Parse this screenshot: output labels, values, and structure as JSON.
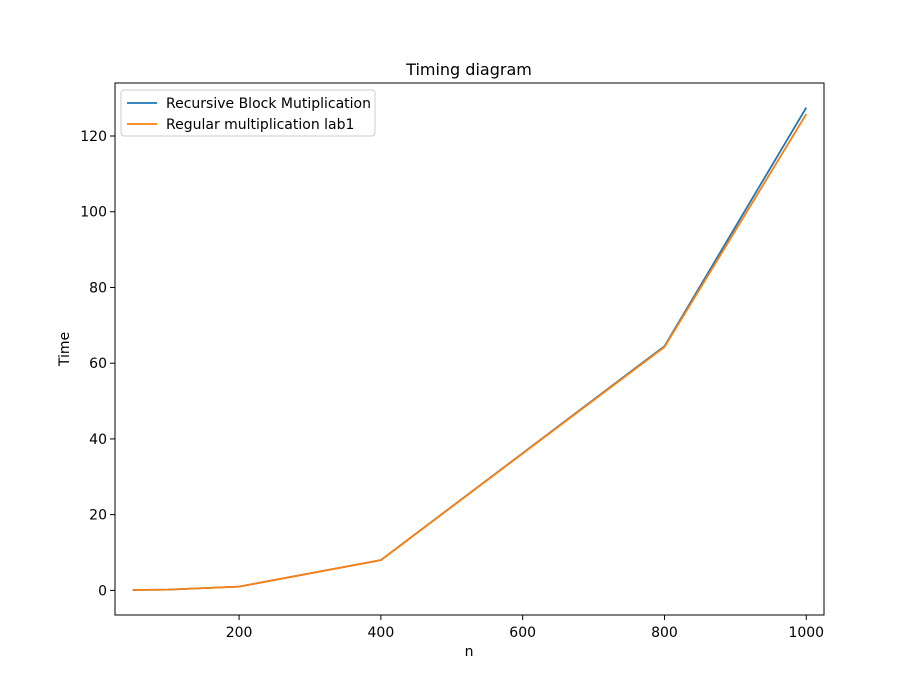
{
  "chart_data": {
    "type": "line",
    "title": "Timing diagram",
    "xlabel": "n",
    "ylabel": "Time",
    "xlim": [
      25,
      1025
    ],
    "ylim": [
      -6.5,
      134
    ],
    "xticks": [
      200,
      400,
      600,
      800,
      1000
    ],
    "yticks": [
      0,
      20,
      40,
      60,
      80,
      100,
      120
    ],
    "grid": false,
    "legend_position": "top-left",
    "series": [
      {
        "name": "Recursive Block Mutiplication",
        "color": "#1f77b4",
        "x": [
          50,
          100,
          200,
          400,
          800,
          1000
        ],
        "y": [
          0.1,
          0.2,
          1.0,
          8.0,
          64.5,
          127.5
        ]
      },
      {
        "name": "Regular multiplication lab1",
        "color": "#ff7f0e",
        "x": [
          50,
          100,
          200,
          400,
          800,
          1000
        ],
        "y": [
          0.1,
          0.2,
          1.0,
          8.0,
          64.3,
          125.8
        ]
      }
    ]
  }
}
